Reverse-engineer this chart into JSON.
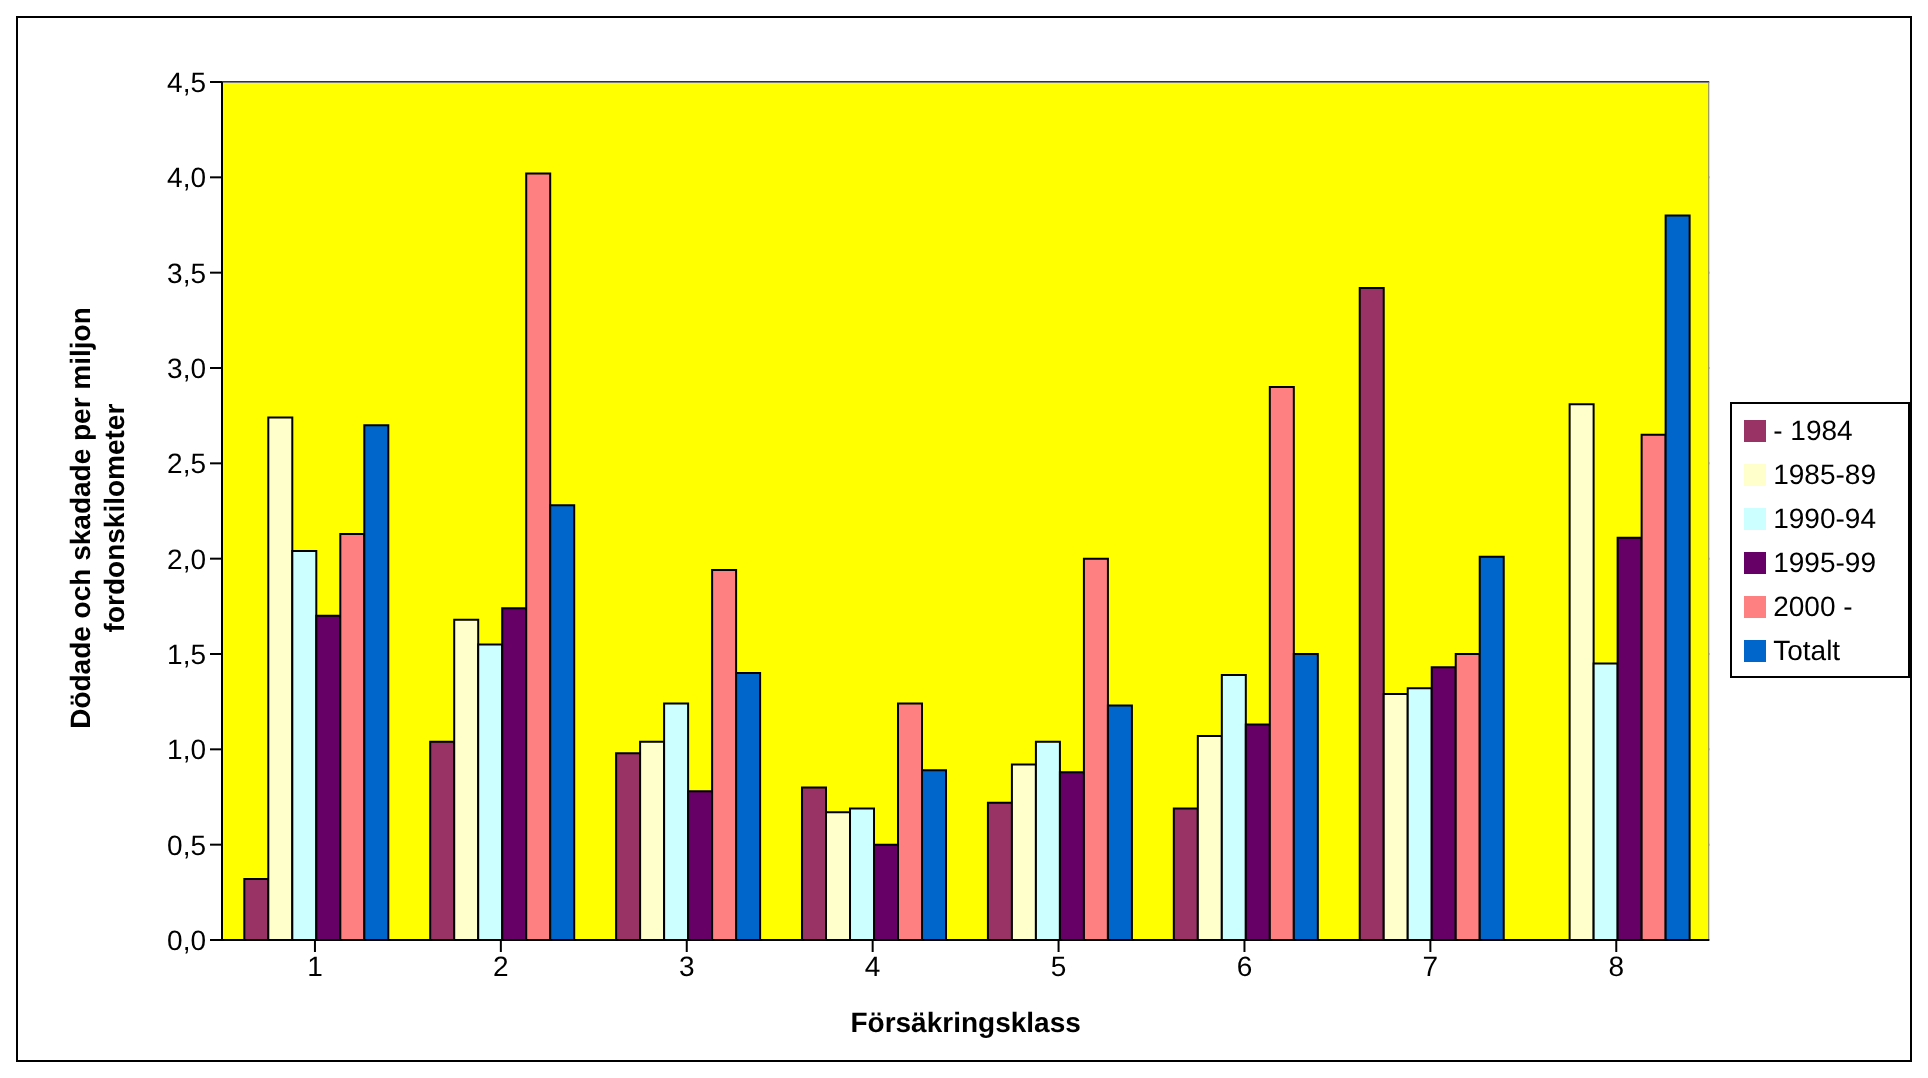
{
  "chart_data": {
    "type": "bar",
    "xlabel": "Försäkringsklass",
    "ylabel": "Dödade och skadade per miljon fordonskilometer",
    "categories": [
      "1",
      "2",
      "3",
      "4",
      "5",
      "6",
      "7",
      "8"
    ],
    "series": [
      {
        "name": "- 1984",
        "color": "#993366",
        "values": [
          0.32,
          1.04,
          0.98,
          0.8,
          0.72,
          0.69,
          3.42,
          null
        ]
      },
      {
        "name": "1985-89",
        "color": "#ffffcc",
        "values": [
          2.74,
          1.68,
          1.04,
          0.67,
          0.92,
          1.07,
          1.29,
          2.81
        ]
      },
      {
        "name": "1990-94",
        "color": "#ccffff",
        "values": [
          2.04,
          1.55,
          1.24,
          0.69,
          1.04,
          1.39,
          1.32,
          1.45
        ]
      },
      {
        "name": "1995-99",
        "color": "#660066",
        "values": [
          1.7,
          1.74,
          0.78,
          0.5,
          0.88,
          1.13,
          1.43,
          2.11
        ]
      },
      {
        "name": "2000 -",
        "color": "#ff8080",
        "values": [
          2.13,
          4.02,
          1.94,
          1.24,
          2.0,
          2.9,
          1.5,
          2.65
        ]
      },
      {
        "name": "Totalt",
        "color": "#0066cc",
        "values": [
          2.7,
          2.28,
          1.4,
          0.89,
          1.23,
          1.5,
          2.01,
          3.8
        ]
      }
    ],
    "ylim": [
      0,
      4.5
    ],
    "yticks": [
      {
        "value": 0,
        "label": "0,0"
      },
      {
        "value": 0.5,
        "label": "0,5"
      },
      {
        "value": 1,
        "label": "1,0"
      },
      {
        "value": 1.5,
        "label": "1,5"
      },
      {
        "value": 2,
        "label": "2,0"
      },
      {
        "value": 2.5,
        "label": "2,5"
      },
      {
        "value": 3,
        "label": "3,0"
      },
      {
        "value": 3.5,
        "label": "3,5"
      },
      {
        "value": 4,
        "label": "4,0"
      },
      {
        "value": 4.5,
        "label": "4,5"
      }
    ],
    "grid": "y",
    "legend": "right"
  }
}
